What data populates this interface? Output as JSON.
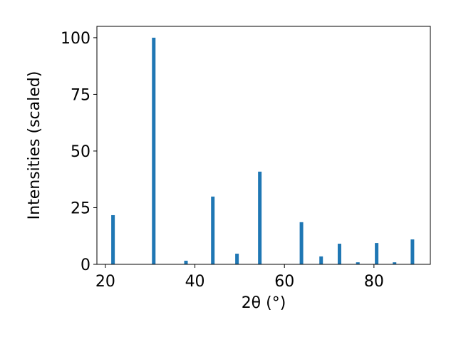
{
  "chart_data": {
    "type": "bar",
    "x": [
      21.7,
      30.8,
      38.0,
      44.0,
      49.4,
      54.5,
      63.8,
      68.2,
      72.3,
      76.4,
      80.6,
      84.6,
      88.6
    ],
    "values": [
      21.7,
      100,
      1.6,
      29.9,
      4.7,
      40.9,
      18.6,
      3.5,
      9.1,
      0.9,
      9.4,
      0.9,
      11.0
    ],
    "color": "#1f77b4",
    "xlabel": "2θ (°)",
    "ylabel": "Intensities (scaled)",
    "xlim": [
      18.1,
      92.6
    ],
    "xticks": [
      20,
      40,
      60,
      80
    ],
    "ylim": [
      0,
      105
    ],
    "yticks": [
      0,
      25,
      50,
      75,
      100
    ],
    "grid": false
  }
}
